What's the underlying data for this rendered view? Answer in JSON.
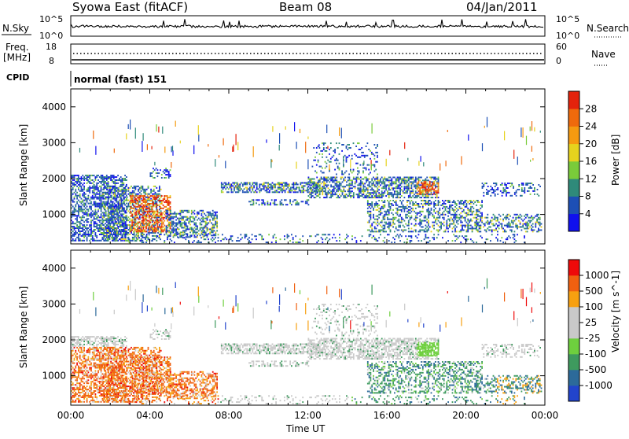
{
  "header": {
    "title": "Syowa East (fitACF)",
    "beam": "Beam 08",
    "date": "04/Jan/2011"
  },
  "noise_panel": {
    "left_label": "N.Sky",
    "right_label": "N.Search",
    "left_ticks": [
      "10^5",
      "10^0"
    ],
    "right_ticks": [
      "10^5",
      "10^0"
    ]
  },
  "freq_panel": {
    "left_label_1": "Freq.",
    "left_label_2": "[MHz]",
    "left_ticks": [
      "18",
      "8"
    ],
    "right_label": "Nave",
    "right_ticks": [
      "60",
      "0"
    ]
  },
  "cpid_panel": {
    "label": "CPID",
    "mode": "normal (fast) 151"
  },
  "colors": {
    "power_scale": [
      "#1010ee",
      "#1d4fb5",
      "#2f8a7a",
      "#7acb3a",
      "#e6d21e",
      "#f59a10",
      "#ef6a0c",
      "#e4230c"
    ],
    "velocity_scale": [
      "#ee0a0a",
      "#f06010",
      "#f7a010",
      "#c9c9c9",
      "#c9c9c9",
      "#6ecf3e",
      "#3e9a5e",
      "#2c6a9a",
      "#2244cc"
    ]
  },
  "chart_data": [
    {
      "type": "heatmap",
      "title": "",
      "xlabel": "Time UT",
      "ylabel": "Slant Range [km]",
      "ylim": [
        180,
        4500
      ],
      "xlim": [
        "00:00",
        "24:00"
      ],
      "x_ticks": [
        "00:00",
        "04:00",
        "08:00",
        "12:00",
        "16:00",
        "20:00",
        "00:00"
      ],
      "y_ticks": [
        "1000",
        "2000",
        "3000",
        "4000"
      ],
      "colorbar_label": "Power [dB]",
      "colorbar_ticks": [
        "4",
        "8",
        "12",
        "16",
        "20",
        "24",
        "28"
      ],
      "colorbar_range": [
        0,
        30
      ],
      "grid": false
    },
    {
      "type": "heatmap",
      "title": "",
      "xlabel": "Time UT",
      "ylabel": "Slant Range [km]",
      "ylim": [
        180,
        4500
      ],
      "xlim": [
        "00:00",
        "24:00"
      ],
      "x_ticks": [
        "00:00",
        "04:00",
        "08:00",
        "12:00",
        "16:00",
        "20:00",
        "00:00"
      ],
      "y_ticks": [
        "1000",
        "2000",
        "3000",
        "4000"
      ],
      "colorbar_label": "Velocity [m s^-1]",
      "colorbar_ticks": [
        "1000",
        "500",
        "100",
        "25",
        "-25",
        "-100",
        "-500",
        "-1000"
      ],
      "colorbar_range": [
        -1000,
        1000
      ],
      "grid": false
    }
  ]
}
